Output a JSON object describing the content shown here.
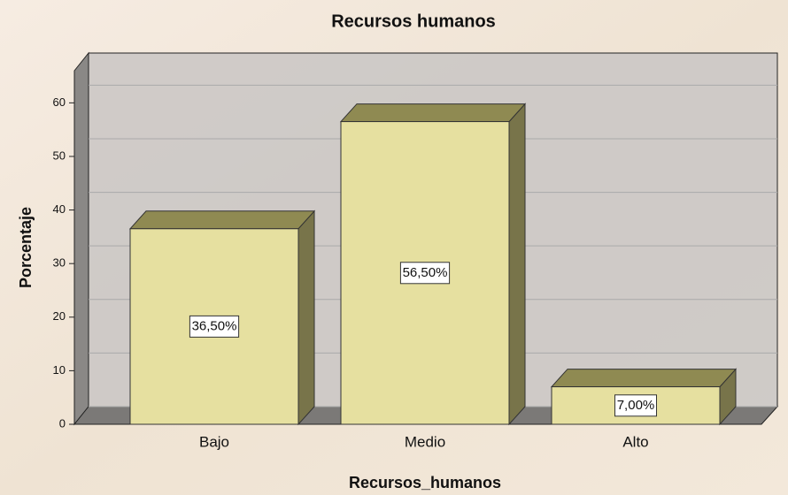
{
  "chart_data": {
    "type": "bar",
    "title": "Recursos humanos",
    "x_label": "Recursos_humanos",
    "y_label": "Porcentaje",
    "categories": [
      "Bajo",
      "Medio",
      "Alto"
    ],
    "values": [
      36.5,
      56.5,
      7.0
    ],
    "value_labels": [
      "36,50%",
      "56,50%",
      "7,00%"
    ],
    "color": "#e6e0a0",
    "ylim": [
      0,
      66
    ],
    "yticks": [
      0,
      10,
      20,
      30,
      40,
      50,
      60
    ],
    "grid": true
  }
}
